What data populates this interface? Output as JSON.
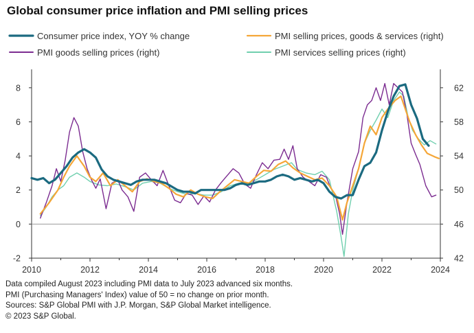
{
  "chart_data": {
    "type": "line",
    "title": "Global consumer price inflation and PMI selling prices",
    "x_ticks": [
      2010,
      2012,
      2014,
      2016,
      2018,
      2020,
      2022,
      2024
    ],
    "xlim": [
      2010,
      2024
    ],
    "y_left": {
      "range": [
        -2,
        9
      ],
      "ticks": [
        -2,
        0,
        2,
        4,
        6,
        8
      ]
    },
    "y_right": {
      "range": [
        42,
        64
      ],
      "ticks": [
        42,
        46,
        50,
        54,
        58,
        62
      ]
    },
    "series": [
      {
        "name": "Consumer price index, YOY % change",
        "axis": "left",
        "color": "#1b6a80",
        "width": 3.2,
        "points": [
          [
            2010.0,
            2.7
          ],
          [
            2010.2,
            2.6
          ],
          [
            2010.4,
            2.7
          ],
          [
            2010.6,
            2.4
          ],
          [
            2010.8,
            2.6
          ],
          [
            2011.0,
            3.0
          ],
          [
            2011.2,
            3.4
          ],
          [
            2011.4,
            3.9
          ],
          [
            2011.6,
            4.2
          ],
          [
            2011.8,
            4.4
          ],
          [
            2012.0,
            4.2
          ],
          [
            2012.2,
            3.9
          ],
          [
            2012.4,
            3.2
          ],
          [
            2012.6,
            2.8
          ],
          [
            2012.8,
            2.6
          ],
          [
            2013.0,
            2.5
          ],
          [
            2013.2,
            2.4
          ],
          [
            2013.4,
            2.3
          ],
          [
            2013.6,
            2.5
          ],
          [
            2013.8,
            2.6
          ],
          [
            2014.0,
            2.6
          ],
          [
            2014.2,
            2.6
          ],
          [
            2014.4,
            2.5
          ],
          [
            2014.6,
            2.4
          ],
          [
            2014.8,
            2.2
          ],
          [
            2015.0,
            2.0
          ],
          [
            2015.2,
            1.9
          ],
          [
            2015.4,
            1.9
          ],
          [
            2015.6,
            1.8
          ],
          [
            2015.8,
            2.0
          ],
          [
            2016.0,
            2.0
          ],
          [
            2016.2,
            2.0
          ],
          [
            2016.4,
            2.0
          ],
          [
            2016.6,
            2.0
          ],
          [
            2016.8,
            2.1
          ],
          [
            2017.0,
            2.3
          ],
          [
            2017.2,
            2.4
          ],
          [
            2017.4,
            2.3
          ],
          [
            2017.6,
            2.4
          ],
          [
            2017.8,
            2.5
          ],
          [
            2018.0,
            2.5
          ],
          [
            2018.2,
            2.6
          ],
          [
            2018.4,
            2.8
          ],
          [
            2018.6,
            2.9
          ],
          [
            2018.8,
            2.8
          ],
          [
            2019.0,
            2.6
          ],
          [
            2019.2,
            2.7
          ],
          [
            2019.4,
            2.6
          ],
          [
            2019.6,
            2.5
          ],
          [
            2019.8,
            2.6
          ],
          [
            2020.0,
            2.4
          ],
          [
            2020.2,
            1.9
          ],
          [
            2020.4,
            1.6
          ],
          [
            2020.6,
            1.5
          ],
          [
            2020.8,
            1.7
          ],
          [
            2021.0,
            1.7
          ],
          [
            2021.2,
            2.6
          ],
          [
            2021.4,
            3.4
          ],
          [
            2021.6,
            3.6
          ],
          [
            2021.8,
            4.2
          ],
          [
            2022.0,
            5.5
          ],
          [
            2022.2,
            6.6
          ],
          [
            2022.4,
            7.5
          ],
          [
            2022.6,
            8.1
          ],
          [
            2022.8,
            8.2
          ],
          [
            2023.0,
            7.0
          ],
          [
            2023.2,
            6.2
          ],
          [
            2023.4,
            5.0
          ],
          [
            2023.6,
            4.6
          ]
        ]
      },
      {
        "name": "PMI selling prices, goods & services (right)",
        "axis": "right",
        "color": "#f5a637",
        "width": 2.2,
        "points": [
          [
            2010.3,
            47.2
          ],
          [
            2010.6,
            48.5
          ],
          [
            2010.9,
            50.0
          ],
          [
            2011.1,
            51.5
          ],
          [
            2011.3,
            52.8
          ],
          [
            2011.55,
            54.0
          ],
          [
            2011.8,
            52.8
          ],
          [
            2012.0,
            51.5
          ],
          [
            2012.2,
            51.0
          ],
          [
            2012.45,
            52.0
          ],
          [
            2012.7,
            50.5
          ],
          [
            2012.95,
            51.2
          ],
          [
            2013.2,
            50.5
          ],
          [
            2013.45,
            49.8
          ],
          [
            2013.7,
            51.0
          ],
          [
            2013.95,
            51.3
          ],
          [
            2014.2,
            51.0
          ],
          [
            2014.45,
            50.8
          ],
          [
            2014.7,
            50.2
          ],
          [
            2014.95,
            49.5
          ],
          [
            2015.2,
            49.2
          ],
          [
            2015.45,
            50.0
          ],
          [
            2015.7,
            49.5
          ],
          [
            2015.95,
            49.2
          ],
          [
            2016.2,
            49.0
          ],
          [
            2016.45,
            49.8
          ],
          [
            2016.7,
            50.5
          ],
          [
            2016.95,
            51.2
          ],
          [
            2017.2,
            51.0
          ],
          [
            2017.45,
            50.8
          ],
          [
            2017.7,
            51.6
          ],
          [
            2017.95,
            52.3
          ],
          [
            2018.2,
            52.2
          ],
          [
            2018.45,
            53.0
          ],
          [
            2018.7,
            53.4
          ],
          [
            2018.95,
            52.6
          ],
          [
            2019.2,
            52.0
          ],
          [
            2019.45,
            51.6
          ],
          [
            2019.7,
            51.2
          ],
          [
            2019.95,
            51.4
          ],
          [
            2020.2,
            50.5
          ],
          [
            2020.45,
            49.2
          ],
          [
            2020.65,
            46.5
          ],
          [
            2020.8,
            48.5
          ],
          [
            2021.0,
            50.5
          ],
          [
            2021.2,
            52.5
          ],
          [
            2021.4,
            55.5
          ],
          [
            2021.6,
            57.5
          ],
          [
            2021.8,
            56.5
          ],
          [
            2022.0,
            58.5
          ],
          [
            2022.2,
            59.5
          ],
          [
            2022.45,
            60.5
          ],
          [
            2022.65,
            61.0
          ],
          [
            2022.8,
            59.5
          ],
          [
            2022.95,
            58.0
          ],
          [
            2023.15,
            56.5
          ],
          [
            2023.35,
            55.3
          ],
          [
            2023.55,
            54.3
          ],
          [
            2023.8,
            53.9
          ],
          [
            2023.95,
            53.7
          ]
        ]
      },
      {
        "name": "PMI goods selling prices (right)",
        "axis": "right",
        "color": "#7b2b90",
        "width": 1.4,
        "points": [
          [
            2010.3,
            46.7
          ],
          [
            2010.5,
            48.5
          ],
          [
            2010.7,
            50.5
          ],
          [
            2010.85,
            52.5
          ],
          [
            2011.0,
            51.0
          ],
          [
            2011.15,
            53.5
          ],
          [
            2011.3,
            56.8
          ],
          [
            2011.45,
            58.5
          ],
          [
            2011.6,
            57.5
          ],
          [
            2011.75,
            54.5
          ],
          [
            2011.9,
            52.5
          ],
          [
            2012.05,
            51.2
          ],
          [
            2012.2,
            50.2
          ],
          [
            2012.35,
            51.3
          ],
          [
            2012.55,
            47.8
          ],
          [
            2012.75,
            50.8
          ],
          [
            2012.95,
            51.2
          ],
          [
            2013.1,
            50.0
          ],
          [
            2013.3,
            49.2
          ],
          [
            2013.5,
            47.5
          ],
          [
            2013.7,
            51.5
          ],
          [
            2013.9,
            52.0
          ],
          [
            2014.1,
            51.2
          ],
          [
            2014.3,
            50.5
          ],
          [
            2014.5,
            52.3
          ],
          [
            2014.7,
            50.5
          ],
          [
            2014.9,
            48.8
          ],
          [
            2015.1,
            48.5
          ],
          [
            2015.3,
            49.6
          ],
          [
            2015.5,
            49.4
          ],
          [
            2015.7,
            48.3
          ],
          [
            2015.9,
            49.3
          ],
          [
            2016.1,
            48.6
          ],
          [
            2016.3,
            50.0
          ],
          [
            2016.5,
            50.9
          ],
          [
            2016.7,
            51.7
          ],
          [
            2016.9,
            52.5
          ],
          [
            2017.1,
            52.0
          ],
          [
            2017.3,
            50.7
          ],
          [
            2017.5,
            50.2
          ],
          [
            2017.7,
            51.8
          ],
          [
            2017.9,
            53.2
          ],
          [
            2018.1,
            52.5
          ],
          [
            2018.3,
            53.5
          ],
          [
            2018.5,
            53.6
          ],
          [
            2018.65,
            54.8
          ],
          [
            2018.8,
            53.6
          ],
          [
            2018.95,
            55.2
          ],
          [
            2019.1,
            52.5
          ],
          [
            2019.3,
            51.5
          ],
          [
            2019.5,
            51.0
          ],
          [
            2019.7,
            50.5
          ],
          [
            2019.9,
            51.8
          ],
          [
            2020.1,
            51.5
          ],
          [
            2020.25,
            50.2
          ],
          [
            2020.4,
            49.5
          ],
          [
            2020.55,
            47.2
          ],
          [
            2020.65,
            44.8
          ],
          [
            2020.8,
            48.5
          ],
          [
            2021.0,
            52.5
          ],
          [
            2021.2,
            54.5
          ],
          [
            2021.35,
            58.5
          ],
          [
            2021.5,
            60.0
          ],
          [
            2021.65,
            60.5
          ],
          [
            2021.8,
            62.0
          ],
          [
            2021.95,
            60.5
          ],
          [
            2022.1,
            62.5
          ],
          [
            2022.25,
            60.0
          ],
          [
            2022.4,
            62.5
          ],
          [
            2022.55,
            62.0
          ],
          [
            2022.7,
            61.5
          ],
          [
            2022.85,
            59.0
          ],
          [
            2023.0,
            55.5
          ],
          [
            2023.15,
            54.2
          ],
          [
            2023.3,
            53.0
          ],
          [
            2023.5,
            50.5
          ],
          [
            2023.7,
            49.2
          ],
          [
            2023.85,
            49.4
          ]
        ]
      },
      {
        "name": "PMI services selling prices (right)",
        "axis": "right",
        "color": "#6fcfae",
        "width": 1.4,
        "points": [
          [
            2010.3,
            47.0
          ],
          [
            2010.5,
            48.0
          ],
          [
            2010.7,
            49.2
          ],
          [
            2010.9,
            50.0
          ],
          [
            2011.1,
            50.5
          ],
          [
            2011.3,
            51.5
          ],
          [
            2011.55,
            52.0
          ],
          [
            2011.8,
            51.5
          ],
          [
            2012.0,
            51.0
          ],
          [
            2012.3,
            50.6
          ],
          [
            2012.6,
            50.5
          ],
          [
            2012.9,
            50.7
          ],
          [
            2013.2,
            50.4
          ],
          [
            2013.5,
            50.0
          ],
          [
            2013.8,
            50.8
          ],
          [
            2014.1,
            51.0
          ],
          [
            2014.4,
            50.8
          ],
          [
            2014.7,
            50.2
          ],
          [
            2015.0,
            49.8
          ],
          [
            2015.3,
            49.5
          ],
          [
            2015.6,
            49.6
          ],
          [
            2015.9,
            49.4
          ],
          [
            2016.2,
            49.4
          ],
          [
            2016.5,
            49.8
          ],
          [
            2016.8,
            50.5
          ],
          [
            2017.1,
            50.8
          ],
          [
            2017.4,
            50.8
          ],
          [
            2017.7,
            51.2
          ],
          [
            2018.0,
            51.8
          ],
          [
            2018.3,
            52.4
          ],
          [
            2018.6,
            52.8
          ],
          [
            2018.9,
            53.2
          ],
          [
            2019.1,
            52.4
          ],
          [
            2019.4,
            52.0
          ],
          [
            2019.7,
            51.8
          ],
          [
            2019.95,
            52.2
          ],
          [
            2020.2,
            51.2
          ],
          [
            2020.45,
            47.5
          ],
          [
            2020.6,
            44.5
          ],
          [
            2020.7,
            42.2
          ],
          [
            2020.85,
            47.2
          ],
          [
            2021.0,
            50.0
          ],
          [
            2021.2,
            52.5
          ],
          [
            2021.4,
            55.5
          ],
          [
            2021.6,
            57.0
          ],
          [
            2021.8,
            58.2
          ],
          [
            2022.0,
            59.5
          ],
          [
            2022.2,
            58.5
          ],
          [
            2022.4,
            60.5
          ],
          [
            2022.6,
            61.5
          ],
          [
            2022.75,
            61.0
          ],
          [
            2022.9,
            58.5
          ],
          [
            2023.05,
            57.0
          ],
          [
            2023.25,
            56.0
          ],
          [
            2023.45,
            55.3
          ],
          [
            2023.65,
            55.8
          ],
          [
            2023.85,
            55.4
          ]
        ]
      }
    ],
    "notes": [
      "Data compiled August 2023 including PMI data to July 2023 advanced six months.",
      "PMI (Purchasing Managers' Index) value of 50 = no change on prior month.",
      "Sources: S&P Global PMI with J.P. Morgan, S&P Global Market intelligence.",
      "© 2023 S&P Global."
    ]
  }
}
